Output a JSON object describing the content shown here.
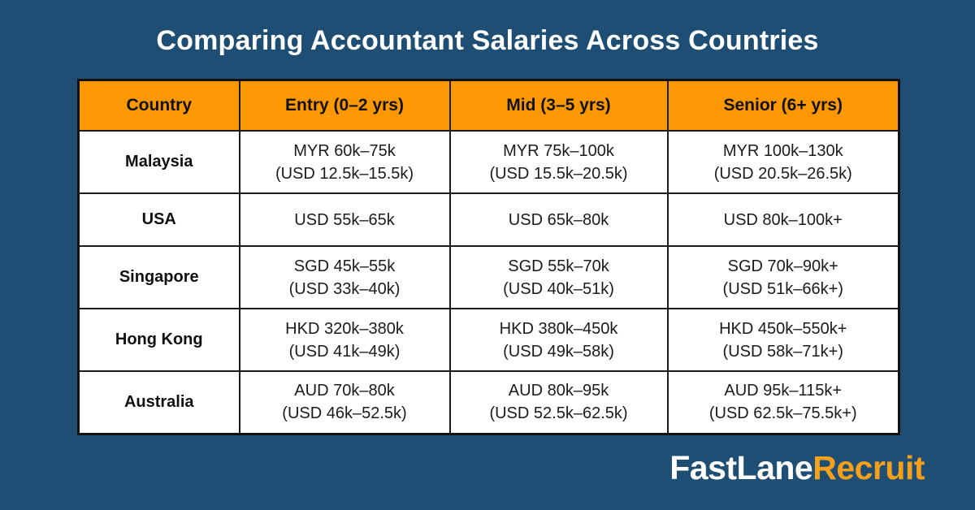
{
  "title": "Comparing Accountant Salaries Across Countries",
  "colors": {
    "background": "#1F4E74",
    "header_orange": "#FB9804",
    "logo_orange": "#F5A01B",
    "cell_background": "#FFFFFF",
    "border": "#1C1C1C",
    "title_text": "#FFFFFF"
  },
  "table": {
    "columns": [
      "Country",
      "Entry (0–2 yrs)",
      "Mid (3–5 yrs)",
      "Senior (6+ yrs)"
    ],
    "rows": [
      {
        "country": "Malaysia",
        "cells": [
          {
            "l1": "MYR 60k–75k",
            "l2": "(USD 12.5k–15.5k)"
          },
          {
            "l1": "MYR 75k–100k",
            "l2": "(USD 15.5k–20.5k)"
          },
          {
            "l1": "MYR 100k–130k",
            "l2": "(USD 20.5k–26.5k)"
          }
        ]
      },
      {
        "country": "USA",
        "cells": [
          {
            "l1": "USD 55k–65k",
            "l2": ""
          },
          {
            "l1": "USD 65k–80k",
            "l2": ""
          },
          {
            "l1": "USD 80k–100k+",
            "l2": ""
          }
        ]
      },
      {
        "country": "Singapore",
        "cells": [
          {
            "l1": "SGD 45k–55k",
            "l2": "(USD 33k–40k)"
          },
          {
            "l1": "SGD 55k–70k",
            "l2": "(USD 40k–51k)"
          },
          {
            "l1": "SGD 70k–90k+",
            "l2": "(USD 51k–66k+)"
          }
        ]
      },
      {
        "country": "Hong Kong",
        "cells": [
          {
            "l1": "HKD 320k–380k",
            "l2": "(USD 41k–49k)"
          },
          {
            "l1": "HKD 380k–450k",
            "l2": "(USD 49k–58k)"
          },
          {
            "l1": "HKD 450k–550k+",
            "l2": "(USD 58k–71k+)"
          }
        ]
      },
      {
        "country": "Australia",
        "cells": [
          {
            "l1": "AUD 70k–80k",
            "l2": "(USD 46k–52.5k)"
          },
          {
            "l1": "AUD 80k–95k",
            "l2": "(USD 52.5k–62.5k)"
          },
          {
            "l1": "AUD 95k–115k+",
            "l2": "(USD 62.5k–75.5k+)"
          }
        ]
      }
    ]
  },
  "logo": {
    "part1": "FastLane",
    "part2": "Recruit"
  },
  "chart_data": {
    "type": "table",
    "title": "Comparing Accountant Salaries Across Countries",
    "columns": [
      "Country",
      "Entry (0–2 yrs)",
      "Mid (3–5 yrs)",
      "Senior (6+ yrs)"
    ],
    "rows": [
      [
        "Malaysia",
        "MYR 60k–75k (USD 12.5k–15.5k)",
        "MYR 75k–100k (USD 15.5k–20.5k)",
        "MYR 100k–130k (USD 20.5k–26.5k)"
      ],
      [
        "USA",
        "USD 55k–65k",
        "USD 65k–80k",
        "USD 80k–100k+"
      ],
      [
        "Singapore",
        "SGD 45k–55k (USD 33k–40k)",
        "SGD 55k–70k (USD 40k–51k)",
        "SGD 70k–90k+ (USD 51k–66k+)"
      ],
      [
        "Hong Kong",
        "HKD 320k–380k (USD 41k–49k)",
        "HKD 380k–450k (USD 49k–58k)",
        "HKD 450k–550k+ (USD 58k–71k+)"
      ],
      [
        "Australia",
        "AUD 70k–80k (USD 46k–52.5k)",
        "AUD 80k–95k (USD 52.5k–62.5k)",
        "AUD 95k–115k+ (USD 62.5k–75.5k+)"
      ]
    ]
  }
}
